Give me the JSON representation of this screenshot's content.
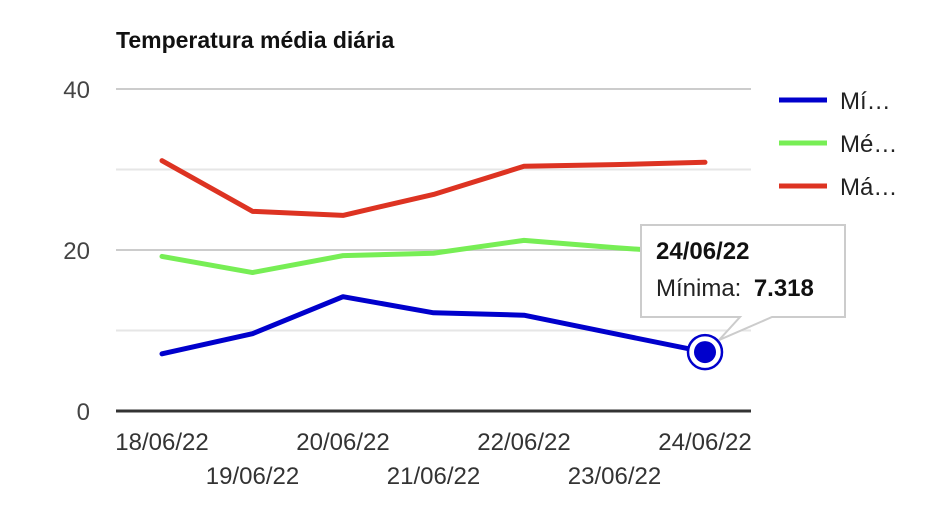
{
  "chart_data": {
    "type": "line",
    "title": "Temperatura média diária",
    "categories": [
      "18/06/22",
      "19/06/22",
      "20/06/22",
      "21/06/22",
      "22/06/22",
      "23/06/22",
      "24/06/22"
    ],
    "ylim": [
      0,
      40
    ],
    "yticks": [
      "0",
      "20",
      "40"
    ],
    "grid": true,
    "legend_position": "right",
    "series": [
      {
        "name": "Mí…",
        "color": "#0000cc",
        "values": [
          7.1,
          9.6,
          14.2,
          12.2,
          11.9,
          9.6,
          7.318
        ]
      },
      {
        "name": "Mé…",
        "color": "#77ee55",
        "values": [
          19.2,
          17.2,
          19.3,
          19.6,
          21.2,
          20.3,
          19.5
        ]
      },
      {
        "name": "Má…",
        "color": "#dd3322",
        "values": [
          31.1,
          24.8,
          24.3,
          26.9,
          30.4,
          30.6,
          30.9
        ]
      }
    ],
    "tooltip": {
      "series_index": 0,
      "point_index": 6,
      "title": "24/06/22",
      "label": "Mínima:",
      "value": "7.318"
    }
  }
}
